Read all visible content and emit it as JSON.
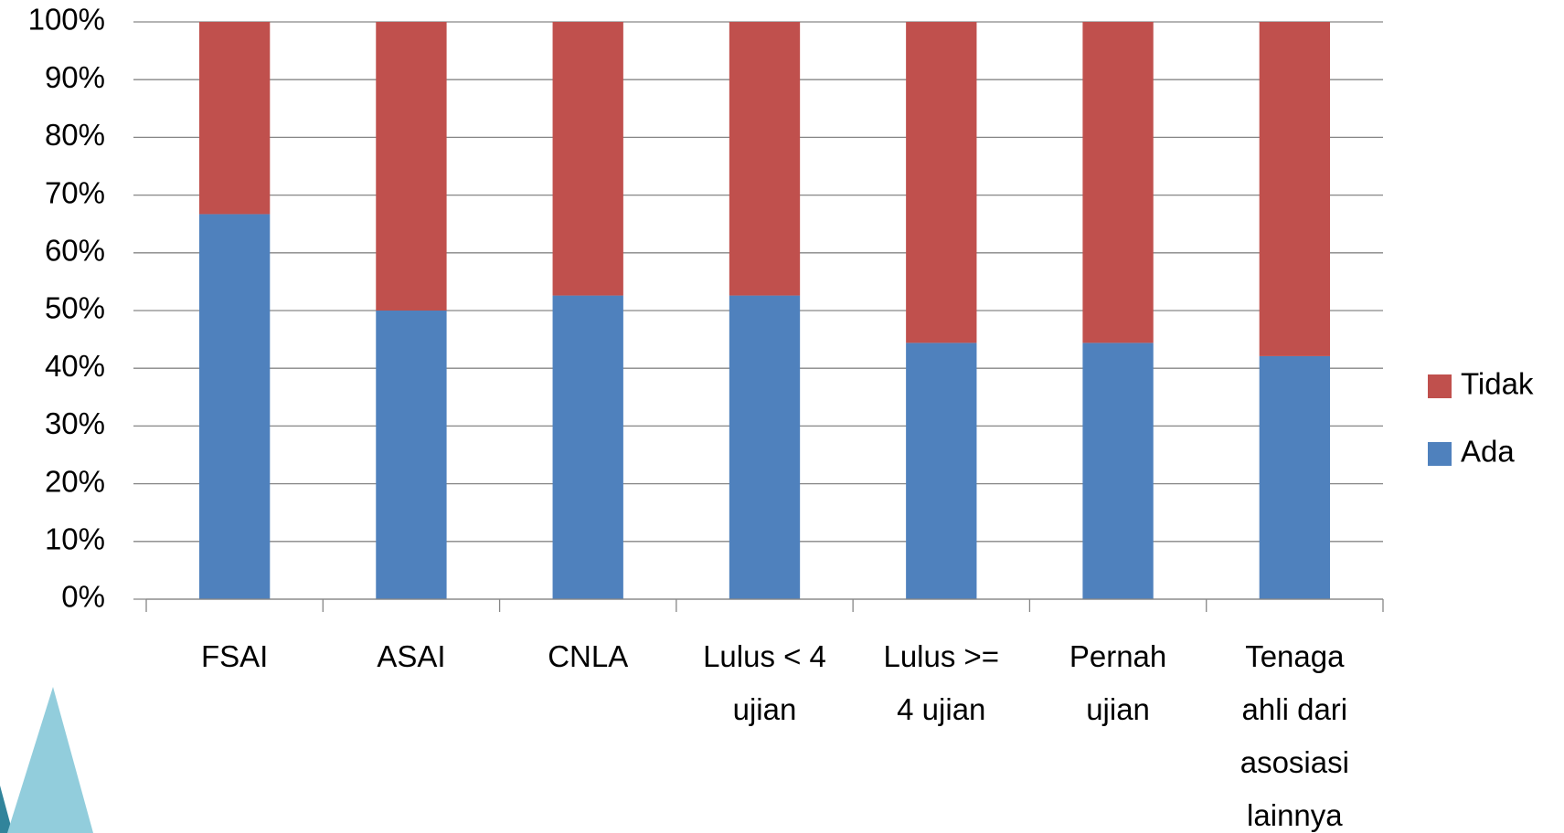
{
  "chart_data": {
    "type": "bar",
    "stacked": true,
    "categories": [
      "FSAI",
      "ASAI",
      "CNLA",
      "Lulus < 4 ujian",
      "Lulus >= 4 ujian",
      "Pernah ujian",
      "Tenaga ahli dari asosiasi lainnya"
    ],
    "series": [
      {
        "name": "Ada",
        "color": "#4f81bd",
        "values": [
          66.7,
          50,
          52.6,
          52.6,
          44.4,
          44.4,
          42.1
        ]
      },
      {
        "name": "Tidak",
        "color": "#c0504d",
        "values": [
          33.3,
          50,
          47.4,
          47.4,
          55.6,
          55.6,
          57.9
        ]
      }
    ],
    "ylim": [
      0,
      100
    ],
    "yticks": [
      {
        "value": 0,
        "label": "0%"
      },
      {
        "value": 10,
        "label": "10%"
      },
      {
        "value": 20,
        "label": "20%"
      },
      {
        "value": 30,
        "label": "30%"
      },
      {
        "value": 40,
        "label": "40%"
      },
      {
        "value": 50,
        "label": "50%"
      },
      {
        "value": 60,
        "label": "60%"
      },
      {
        "value": 70,
        "label": "70%"
      },
      {
        "value": 80,
        "label": "80%"
      },
      {
        "value": 90,
        "label": "90%"
      },
      {
        "value": 100,
        "label": "100%"
      }
    ],
    "grid": true,
    "legend": "right"
  }
}
